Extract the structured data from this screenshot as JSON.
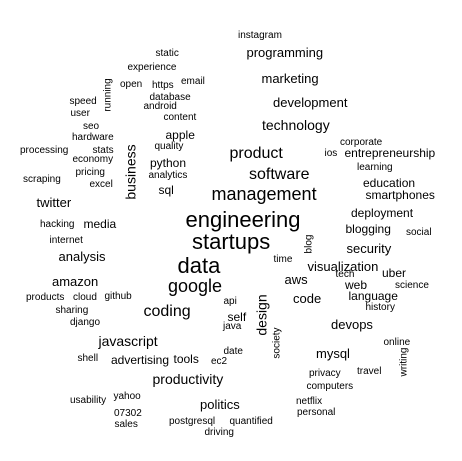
{
  "word_cloud": {
    "text_color": "#000000",
    "background": "#ffffff",
    "words": [
      {
        "text": "engineering",
        "rank": 1
      },
      {
        "text": "startups",
        "rank": 1
      },
      {
        "text": "data",
        "rank": 1
      },
      {
        "text": "google",
        "rank": 2
      },
      {
        "text": "management",
        "rank": 2
      },
      {
        "text": "software",
        "rank": 3
      },
      {
        "text": "product",
        "rank": 3
      },
      {
        "text": "coding",
        "rank": 3
      },
      {
        "text": "technology",
        "rank": 4
      },
      {
        "text": "javascript",
        "rank": 4
      },
      {
        "text": "design",
        "rank": 4,
        "vertical": true
      },
      {
        "text": "business",
        "rank": 4,
        "vertical": true
      },
      {
        "text": "productivity",
        "rank": 4
      },
      {
        "text": "development",
        "rank": 5
      },
      {
        "text": "marketing",
        "rank": 5
      },
      {
        "text": "programming",
        "rank": 5
      },
      {
        "text": "analysis",
        "rank": 5
      },
      {
        "text": "aws",
        "rank": 5
      },
      {
        "text": "twitter",
        "rank": 5
      },
      {
        "text": "amazon",
        "rank": 5
      },
      {
        "text": "visualization",
        "rank": 5
      },
      {
        "text": "code",
        "rank": 5
      },
      {
        "text": "devops",
        "rank": 5
      },
      {
        "text": "mysql",
        "rank": 5
      },
      {
        "text": "security",
        "rank": 5
      },
      {
        "text": "politics",
        "rank": 5
      },
      {
        "text": "media",
        "rank": 6
      },
      {
        "text": "advertising",
        "rank": 6
      },
      {
        "text": "blogging",
        "rank": 6
      },
      {
        "text": "entrepreneurship",
        "rank": 6
      },
      {
        "text": "python",
        "rank": 6
      },
      {
        "text": "apple",
        "rank": 6
      },
      {
        "text": "sql",
        "rank": 6
      },
      {
        "text": "self",
        "rank": 6
      },
      {
        "text": "tools",
        "rank": 6
      },
      {
        "text": "deployment",
        "rank": 6
      },
      {
        "text": "language",
        "rank": 6
      },
      {
        "text": "smartphones",
        "rank": 6
      },
      {
        "text": "education",
        "rank": 6
      },
      {
        "text": "web",
        "rank": 6
      },
      {
        "text": "uber",
        "rank": 6
      },
      {
        "text": "experience",
        "rank": 7
      },
      {
        "text": "database",
        "rank": 7
      },
      {
        "text": "quality",
        "rank": 7
      },
      {
        "text": "analytics",
        "rank": 7
      },
      {
        "text": "learning",
        "rank": 7
      },
      {
        "text": "corporate",
        "rank": 7
      },
      {
        "text": "history",
        "rank": 7
      },
      {
        "text": "science",
        "rank": 7
      },
      {
        "text": "social",
        "rank": 7
      },
      {
        "text": "time",
        "rank": 7
      },
      {
        "text": "tech",
        "rank": 7
      },
      {
        "text": "blog",
        "rank": 7,
        "vertical": true
      },
      {
        "text": "economy",
        "rank": 7
      },
      {
        "text": "pricing",
        "rank": 7
      },
      {
        "text": "stats",
        "rank": 7
      },
      {
        "text": "processing",
        "rank": 7
      },
      {
        "text": "scraping",
        "rank": 7
      },
      {
        "text": "excel",
        "rank": 7
      },
      {
        "text": "hacking",
        "rank": 7
      },
      {
        "text": "internet",
        "rank": 7
      },
      {
        "text": "products",
        "rank": 7
      },
      {
        "text": "cloud",
        "rank": 7
      },
      {
        "text": "sharing",
        "rank": 7
      },
      {
        "text": "django",
        "rank": 7
      },
      {
        "text": "github",
        "rank": 7
      },
      {
        "text": "api",
        "rank": 7
      },
      {
        "text": "java",
        "rank": 7
      },
      {
        "text": "date",
        "rank": 7
      },
      {
        "text": "ec2",
        "rank": 7
      },
      {
        "text": "society",
        "rank": 7,
        "vertical": true
      },
      {
        "text": "shell",
        "rank": 7
      },
      {
        "text": "yahoo",
        "rank": 7
      },
      {
        "text": "usability",
        "rank": 7
      },
      {
        "text": "07302",
        "rank": 7
      },
      {
        "text": "sales",
        "rank": 7
      },
      {
        "text": "postgresql",
        "rank": 7
      },
      {
        "text": "quantified",
        "rank": 7
      },
      {
        "text": "driving",
        "rank": 7
      },
      {
        "text": "netflix",
        "rank": 7
      },
      {
        "text": "personal",
        "rank": 7
      },
      {
        "text": "computers",
        "rank": 7
      },
      {
        "text": "privacy",
        "rank": 7
      },
      {
        "text": "travel",
        "rank": 7
      },
      {
        "text": "online",
        "rank": 7
      },
      {
        "text": "writing",
        "rank": 7,
        "vertical": true
      },
      {
        "text": "instagram",
        "rank": 7
      },
      {
        "text": "static",
        "rank": 7
      },
      {
        "text": "email",
        "rank": 7
      },
      {
        "text": "https",
        "rank": 7
      },
      {
        "text": "open",
        "rank": 7
      },
      {
        "text": "android",
        "rank": 7
      },
      {
        "text": "content",
        "rank": 7
      },
      {
        "text": "running",
        "rank": 7,
        "vertical": true
      },
      {
        "text": "speed",
        "rank": 7
      },
      {
        "text": "user",
        "rank": 7
      },
      {
        "text": "seo",
        "rank": 7
      },
      {
        "text": "hardware",
        "rank": 7
      },
      {
        "text": "ios",
        "rank": 7
      }
    ]
  }
}
